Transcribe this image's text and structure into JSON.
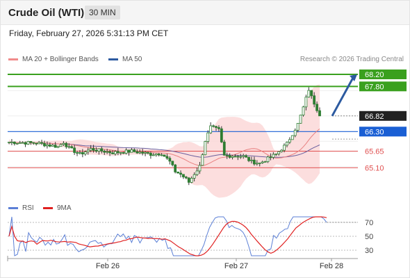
{
  "header": {
    "title": "Crude Oil (WTI)",
    "interval": "30 MIN",
    "timestamp": "Friday, February 27, 2026 5:31:13 PM CET"
  },
  "legend": {
    "items": [
      {
        "label": "MA 20 + Bollinger Bands",
        "color": "#f08a8a"
      },
      {
        "label": "MA 50",
        "color": "#2c5aa0"
      }
    ],
    "credit": "Research © 2026 Trading Central"
  },
  "rsi_legend": {
    "items": [
      {
        "label": "RSI",
        "color": "#5b7fd6"
      },
      {
        "label": "9MA",
        "color": "#e02020"
      }
    ]
  },
  "chart_data": [
    {
      "type": "candlestick",
      "title": "Crude Oil (WTI)",
      "ylim": [
        64.3,
        68.5
      ],
      "x_ticks": [
        "Feb 26",
        "Feb 27",
        "Feb 28"
      ],
      "horizontal_levels": [
        {
          "value": 68.2,
          "label": "68.20",
          "color": "#3aa01e",
          "kind": "resistance"
        },
        {
          "value": 67.8,
          "label": "67.80",
          "color": "#3aa01e",
          "kind": "resistance"
        },
        {
          "value": 66.82,
          "label": "66.82",
          "color": "#222222",
          "kind": "last price"
        },
        {
          "value": 66.3,
          "label": "66.30",
          "color": "#1a5fd4",
          "kind": "pivot"
        },
        {
          "value": 65.65,
          "label": "65.65",
          "color": "#e05050",
          "kind": "support"
        },
        {
          "value": 65.1,
          "label": "65.10",
          "color": "#e05050",
          "kind": "support"
        }
      ],
      "arrow": {
        "from": 66.82,
        "to": 68.2,
        "color": "#2c5aa0"
      }
    },
    {
      "type": "line",
      "title": "RSI",
      "series": [
        {
          "name": "RSI"
        },
        {
          "name": "9MA"
        }
      ],
      "ylim": [
        20,
        80
      ],
      "y_ticks": [
        70,
        50,
        30
      ]
    }
  ]
}
